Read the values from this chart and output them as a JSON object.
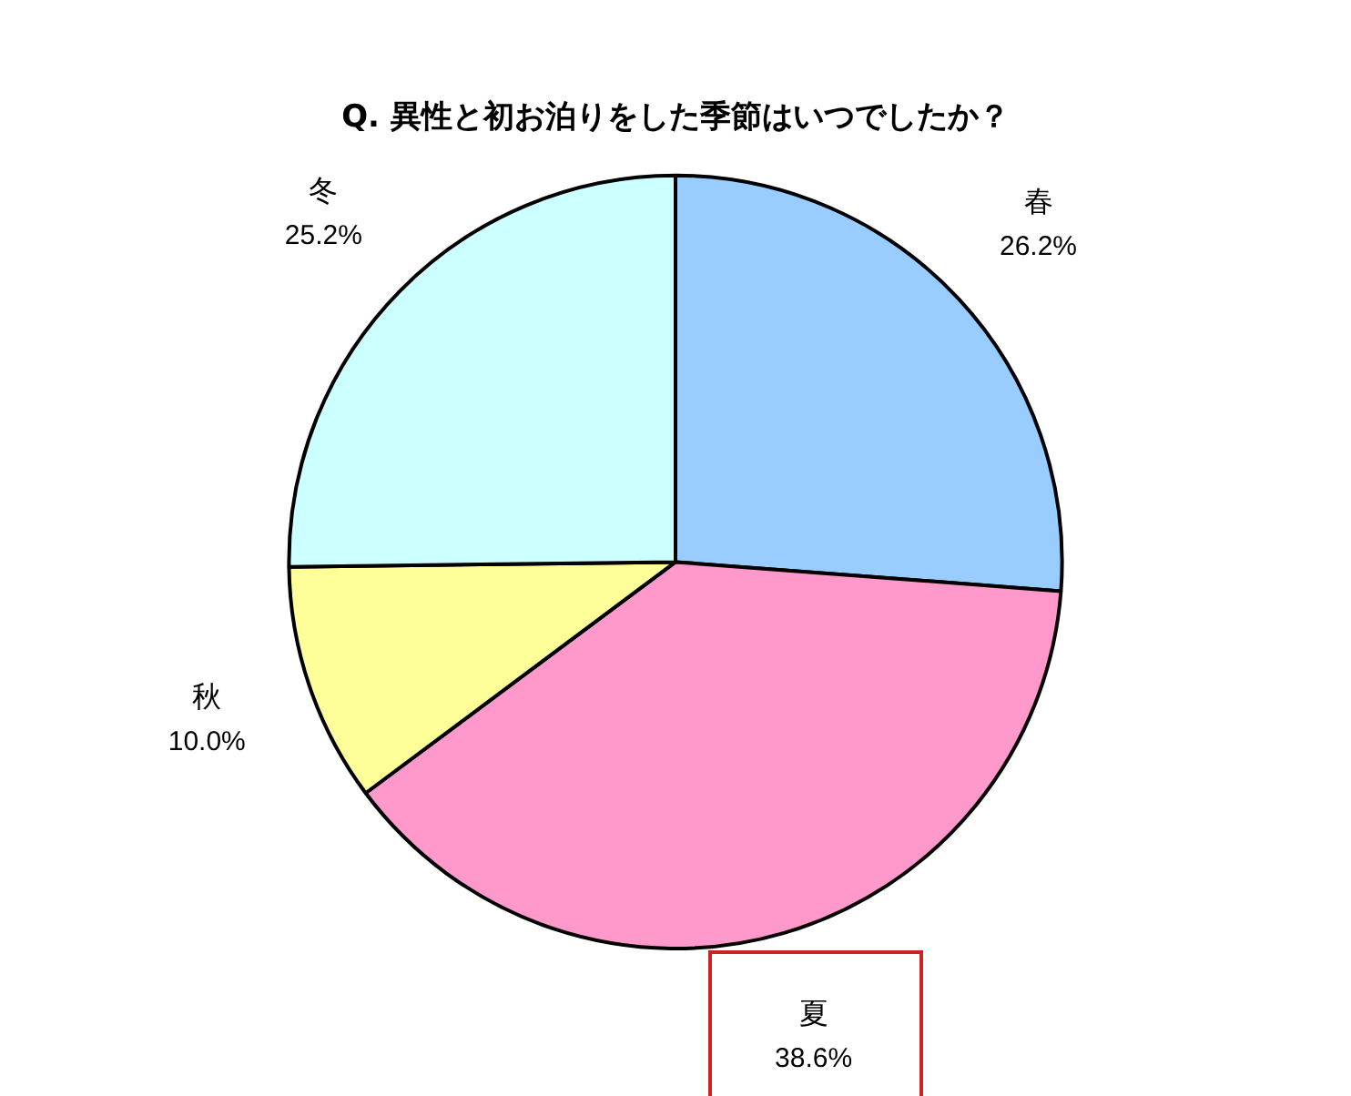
{
  "chart_data": {
    "type": "pie",
    "title": "Q. 異性と初お泊りをした季節はいつでしたか？",
    "categories": [
      "春",
      "夏",
      "秋",
      "冬"
    ],
    "values": [
      26.2,
      38.6,
      10.0,
      25.2
    ],
    "colors": [
      "#99ccff",
      "#ff99cc",
      "#ffff99",
      "#ccffff"
    ],
    "value_labels": [
      "26.2%",
      "38.6%",
      "10.0%",
      "25.2%"
    ],
    "legend": false
  }
}
